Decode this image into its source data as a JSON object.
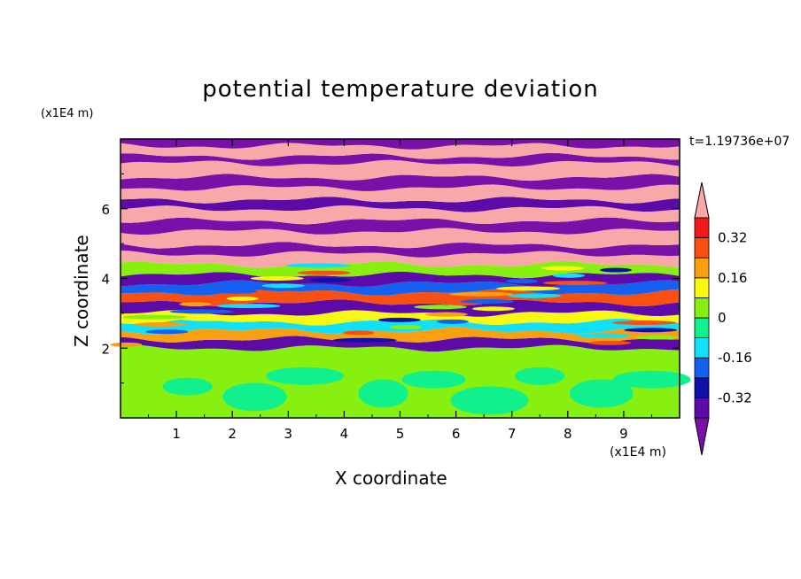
{
  "chart_data": {
    "type": "heatmap",
    "title": "potential temperature deviation",
    "xlabel": "X coordinate",
    "ylabel": "Z coordinate",
    "x_unit": "(x1E4 m)",
    "y_unit": "(x1E4 m)",
    "time_label": "t=1.19736e+07",
    "xlim": [
      0,
      10
    ],
    "ylim": [
      0,
      8
    ],
    "x_ticks": [
      "1",
      "2",
      "3",
      "4",
      "5",
      "6",
      "7",
      "8",
      "9"
    ],
    "y_ticks": [
      "2",
      "4",
      "6"
    ],
    "colorbar": {
      "levels": [
        {
          "min": -999,
          "max": -0.4,
          "color": "#7a10a8"
        },
        {
          "min": -0.4,
          "max": -0.32,
          "color": "#5c0aa8"
        },
        {
          "min": -0.32,
          "max": -0.24,
          "color": "#1010a8"
        },
        {
          "min": -0.24,
          "max": -0.16,
          "color": "#1460f0"
        },
        {
          "min": -0.16,
          "max": -0.08,
          "color": "#10e0f8"
        },
        {
          "min": -0.08,
          "max": 0,
          "color": "#10f08c"
        },
        {
          "min": 0,
          "max": 0.08,
          "color": "#88f010"
        },
        {
          "min": 0.08,
          "max": 0.16,
          "color": "#f8f810"
        },
        {
          "min": 0.16,
          "max": 0.24,
          "color": "#f8a010"
        },
        {
          "min": 0.24,
          "max": 0.32,
          "color": "#f85010"
        },
        {
          "min": 0.32,
          "max": 0.4,
          "color": "#f01818"
        },
        {
          "min": 0.4,
          "max": 999,
          "color": "#f8a8a8"
        }
      ],
      "labels": [
        "0.32",
        "0.16",
        "0",
        "-0.16",
        "-0.32"
      ]
    },
    "bands": [
      {
        "z0": 0.0,
        "z1": 2.0,
        "value": 0.04
      },
      {
        "z0": 2.0,
        "z1": 2.25,
        "value": -0.36
      },
      {
        "z0": 2.25,
        "z1": 2.5,
        "value": 0.2
      },
      {
        "z0": 2.5,
        "z1": 2.75,
        "value": -0.12
      },
      {
        "z0": 2.75,
        "z1": 3.0,
        "value": 0.12
      },
      {
        "z0": 3.0,
        "z1": 3.3,
        "value": -0.36
      },
      {
        "z0": 3.3,
        "z1": 3.6,
        "value": 0.28
      },
      {
        "z0": 3.6,
        "z1": 3.85,
        "value": -0.2
      },
      {
        "z0": 3.85,
        "z1": 4.1,
        "value": -0.36
      },
      {
        "z0": 4.1,
        "z1": 4.4,
        "value": 0.04
      },
      {
        "z0": 4.4,
        "z1": 4.7,
        "value": 0.45
      },
      {
        "z0": 4.7,
        "z1": 4.95,
        "value": -0.45
      },
      {
        "z0": 4.95,
        "z1": 5.35,
        "value": 0.45
      },
      {
        "z0": 5.35,
        "z1": 5.65,
        "value": -0.45
      },
      {
        "z0": 5.65,
        "z1": 6.0,
        "value": 0.45
      },
      {
        "z0": 6.0,
        "z1": 6.25,
        "value": -0.36
      },
      {
        "z0": 6.25,
        "z1": 6.6,
        "value": 0.45
      },
      {
        "z0": 6.6,
        "z1": 6.9,
        "value": -0.45
      },
      {
        "z0": 6.9,
        "z1": 7.3,
        "value": 0.45
      },
      {
        "z0": 7.3,
        "z1": 7.5,
        "value": -0.45
      },
      {
        "z0": 7.5,
        "z1": 7.8,
        "value": 0.45
      },
      {
        "z0": 7.8,
        "z1": 8.0,
        "value": -0.45
      }
    ]
  }
}
